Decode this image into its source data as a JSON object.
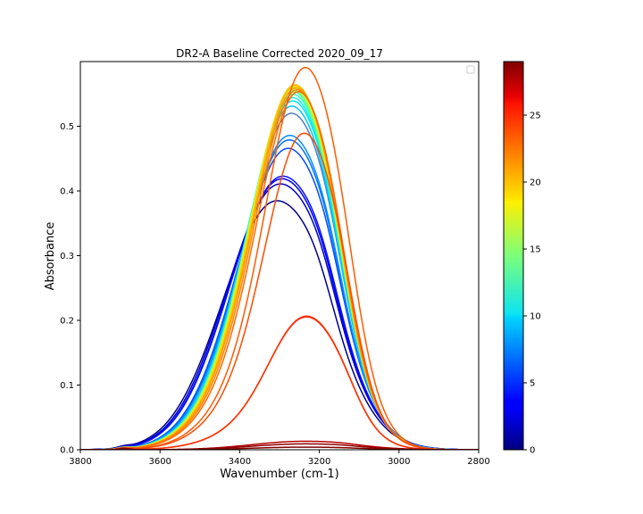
{
  "chart_data": {
    "type": "line",
    "title": "DR2-A Baseline Corrected 2020_09_17",
    "xlabel": "Wavenumber (cm-1)",
    "ylabel": "Absorbance",
    "x_reversed": true,
    "xlim": [
      3800,
      2800
    ],
    "ylim": [
      0.0,
      0.6
    ],
    "xticks": [
      3800,
      3600,
      3400,
      3200,
      3000,
      2800
    ],
    "yticks": [
      0.0,
      0.1,
      0.2,
      0.3,
      0.4,
      0.5
    ],
    "xtick_labels": [
      "3800",
      "3600",
      "3400",
      "3200",
      "3000",
      "2800"
    ],
    "ytick_labels": [
      "0.0",
      "0.1",
      "0.2",
      "0.3",
      "0.4",
      "0.5"
    ],
    "grid": false,
    "legend": {
      "placement": "upper right",
      "entries": []
    },
    "colorbar": {
      "colormap": "jet",
      "range": [
        0,
        29
      ],
      "ticks": [
        0,
        5,
        10,
        15,
        20,
        25
      ],
      "tick_labels": [
        "0",
        "5",
        "10",
        "15",
        "20",
        "25"
      ]
    },
    "series": [
      {
        "index": 0,
        "color": "#00008f",
        "peak": 3290,
        "height": 0.382,
        "hw": 120,
        "shoulder": 0.8
      },
      {
        "index": 1,
        "color": "#0000c4",
        "peak": 3283,
        "height": 0.408,
        "hw": 118,
        "shoulder": 0.78
      },
      {
        "index": 2,
        "color": "#0000ed",
        "peak": 3280,
        "height": 0.416,
        "hw": 116,
        "shoulder": 0.77
      },
      {
        "index": 3,
        "color": "#0010ff",
        "peak": 3278,
        "height": 0.42,
        "hw": 116,
        "shoulder": 0.76
      },
      {
        "index": 4,
        "color": "#004cff",
        "peak": 3268,
        "height": 0.463,
        "hw": 110,
        "shoulder": 0.71
      },
      {
        "index": 5,
        "color": "#0070ff",
        "peak": 3266,
        "height": 0.476,
        "hw": 108,
        "shoulder": 0.7
      },
      {
        "index": 6,
        "color": "#0090ff",
        "peak": 3265,
        "height": 0.483,
        "hw": 107,
        "shoulder": 0.69
      },
      {
        "index": 7,
        "color": "#4f7fbf",
        "peak": 3262,
        "height": 0.517,
        "hw": 104,
        "shoulder": 0.65
      },
      {
        "index": 8,
        "color": "#00c8ff",
        "peak": 3262,
        "height": 0.528,
        "hw": 103,
        "shoulder": 0.64
      },
      {
        "index": 9,
        "color": "#00e0fb",
        "peak": 3260,
        "height": 0.536,
        "hw": 102,
        "shoulder": 0.63
      },
      {
        "index": 10,
        "color": "#16f0e0",
        "peak": 3260,
        "height": 0.541,
        "hw": 102,
        "shoulder": 0.62
      },
      {
        "index": 11,
        "color": "#30ffc6",
        "peak": 3259,
        "height": 0.546,
        "hw": 101,
        "shoulder": 0.62
      },
      {
        "index": 12,
        "color": "#5aff9c",
        "peak": 3259,
        "height": 0.55,
        "hw": 101,
        "shoulder": 0.61
      },
      {
        "index": 13,
        "color": "#80ff77",
        "peak": 3258,
        "height": 0.552,
        "hw": 100,
        "shoulder": 0.61
      },
      {
        "index": 14,
        "color": "#a6ff50",
        "peak": 3258,
        "height": 0.555,
        "hw": 100,
        "shoulder": 0.6
      },
      {
        "index": 15,
        "color": "#ccff2a",
        "peak": 3257,
        "height": 0.557,
        "hw": 100,
        "shoulder": 0.6
      },
      {
        "index": 16,
        "color": "#f0f800",
        "peak": 3257,
        "height": 0.559,
        "hw": 99,
        "shoulder": 0.59
      },
      {
        "index": 17,
        "color": "#ffd400",
        "peak": 3256,
        "height": 0.561,
        "hw": 99,
        "shoulder": 0.59
      },
      {
        "index": 18,
        "color": "#ffb400",
        "peak": 3255,
        "height": 0.56,
        "hw": 98,
        "shoulder": 0.58
      },
      {
        "index": 19,
        "color": "#ff9a00",
        "peak": 3253,
        "height": 0.556,
        "hw": 98,
        "shoulder": 0.58
      },
      {
        "index": 20,
        "color": "#ff8200",
        "peak": 3251,
        "height": 0.553,
        "hw": 97,
        "shoulder": 0.57
      },
      {
        "index": 21,
        "color": "#ff6a00",
        "peak": 3248,
        "height": 0.55,
        "hw": 96,
        "shoulder": 0.56
      },
      {
        "index": 22,
        "color": "#ff5a00",
        "peak": 3232,
        "height": 0.587,
        "hw": 92,
        "shoulder": 0.52
      },
      {
        "index": 23,
        "color": "#ff4a00",
        "peak": 3235,
        "height": 0.486,
        "hw": 92,
        "shoulder": 0.5
      },
      {
        "index": 24,
        "color": "#ee1400",
        "peak": 3230,
        "height": 0.204,
        "hw": 90,
        "shoulder": 0.48
      },
      {
        "index": 25,
        "color": "#ff3300",
        "peak": 3230,
        "height": 0.205,
        "hw": 90,
        "shoulder": 0.47
      },
      {
        "index": 26,
        "color": "#b40000",
        "peak": 3230,
        "height": 0.013,
        "hw": 120,
        "shoulder": 0.45
      },
      {
        "index": 27,
        "color": "#8f0000",
        "peak": 3230,
        "height": 0.009,
        "hw": 120,
        "shoulder": 0.45
      },
      {
        "index": 28,
        "color": "#7f0000",
        "peak": 3230,
        "height": 0.004,
        "hw": 120,
        "shoulder": 0.45
      }
    ]
  }
}
